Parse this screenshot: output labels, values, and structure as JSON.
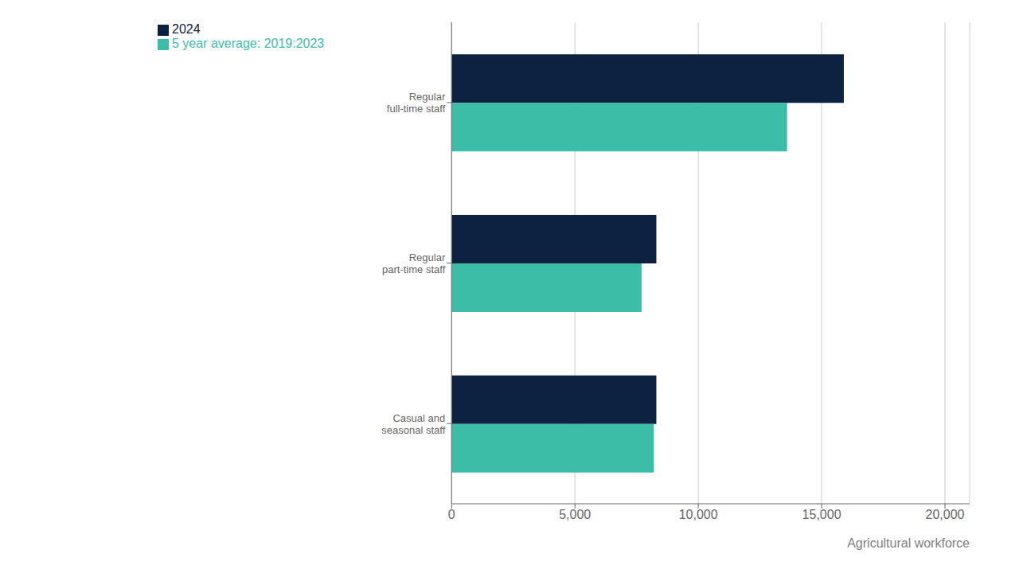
{
  "chart_data": {
    "type": "bar",
    "orientation": "horizontal",
    "categories": [
      "Regular\nfull-time staff",
      "Regular\npart-time staff",
      "Casual and\nseasonal staff"
    ],
    "series": [
      {
        "name": "2024",
        "color": "#0d2240",
        "values": [
          15900,
          8300,
          8300
        ]
      },
      {
        "name": "5 year average: 2019:2023",
        "color": "#3cbda8",
        "values": [
          13600,
          7700,
          8200
        ]
      }
    ],
    "xlabel": "Agricultural workforce",
    "xlim": [
      0,
      21000
    ],
    "xticks": [
      0,
      {
        "value": 5000,
        "label": "5,000"
      },
      {
        "value": 10000,
        "label": "10,000"
      },
      {
        "value": 15000,
        "label": "15,000"
      },
      {
        "value": 20000,
        "label": "20,000"
      }
    ],
    "grid": true,
    "legend": "upper left"
  }
}
